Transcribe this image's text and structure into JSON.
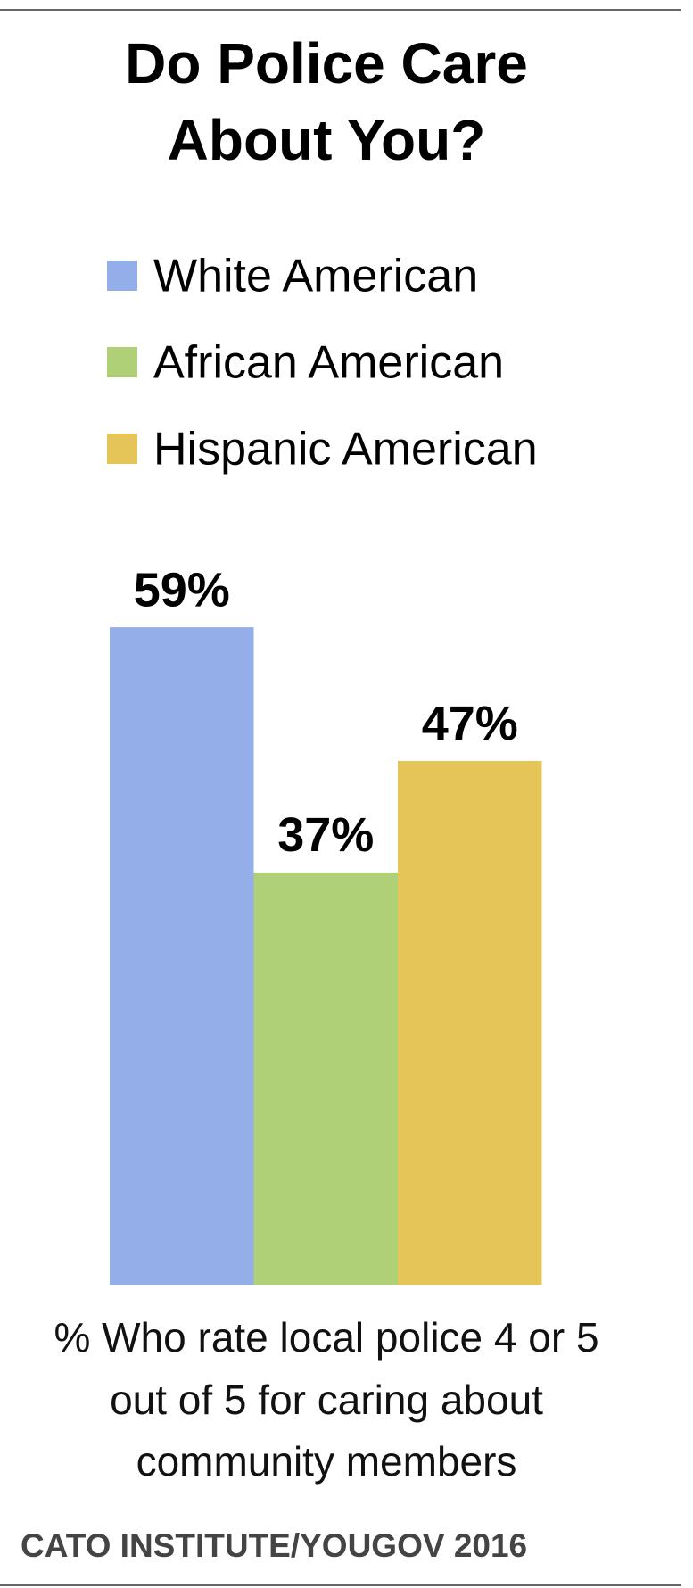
{
  "chart_data": {
    "type": "bar",
    "title": [
      "Do Police Care",
      "About You?"
    ],
    "series": [
      {
        "name": "White American",
        "color": "#93aee8",
        "values": [
          59
        ],
        "value_labels": [
          "59%"
        ]
      },
      {
        "name": "African American",
        "color": "#b0d077",
        "values": [
          37
        ],
        "value_labels": [
          "37%"
        ]
      },
      {
        "name": "Hispanic American",
        "color": "#e5c557",
        "values": [
          47
        ],
        "value_labels": [
          "47%"
        ]
      }
    ],
    "subtitle": [
      "% Who rate local police 4 or 5",
      "out of 5 for caring about",
      "community members"
    ],
    "source": "CATO INSTITUTE/YOUGOV 2016"
  }
}
